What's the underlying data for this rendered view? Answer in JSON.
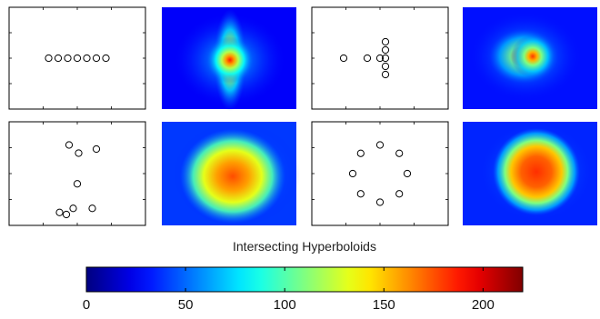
{
  "colorbar": {
    "title": "Intersecting Hyperboloids",
    "min": 0,
    "max": 220,
    "ticks": [
      0,
      50,
      100,
      150,
      200
    ],
    "tick_labels": [
      "0",
      "50",
      "100",
      "150",
      "200"
    ],
    "colormap": "jet"
  },
  "panels": [
    {
      "id": "row1-col1",
      "kind": "sensor-layout",
      "arrangement": "linear array",
      "sensors": [
        [
          -0.45,
          0.0
        ],
        [
          -0.3,
          0.0
        ],
        [
          -0.15,
          0.0
        ],
        [
          0.0,
          0.0
        ],
        [
          0.15,
          0.0
        ],
        [
          0.3,
          0.0
        ],
        [
          0.45,
          0.0
        ]
      ]
    },
    {
      "id": "row1-col2",
      "kind": "heatmap",
      "description_peak": "compact hot spot at centre with streaks along diagonals",
      "peak_level": 0.85
    },
    {
      "id": "row1-col3",
      "kind": "sensor-layout",
      "arrangement": "cross array",
      "sensors": [
        [
          -1.0,
          0.0
        ],
        [
          -0.35,
          0.0
        ],
        [
          0.0,
          0.0
        ],
        [
          0.15,
          0.0
        ],
        [
          0.15,
          0.3
        ],
        [
          0.15,
          -0.3
        ],
        [
          0.15,
          0.6
        ],
        [
          0.15,
          -0.6
        ]
      ]
    },
    {
      "id": "row1-col4",
      "kind": "heatmap",
      "peak_level": 0.82
    },
    {
      "id": "row2-col1",
      "kind": "sensor-layout",
      "arrangement": "random array",
      "sensors": [
        [
          -0.3,
          0.7
        ],
        [
          0.05,
          0.5
        ],
        [
          0.7,
          0.6
        ],
        [
          0.0,
          -0.25
        ],
        [
          0.55,
          -0.85
        ],
        [
          -0.15,
          -0.85
        ],
        [
          -0.65,
          -0.95
        ],
        [
          -0.4,
          -1.0
        ]
      ]
    },
    {
      "id": "row2-col2",
      "kind": "heatmap",
      "peak_level": 0.78
    },
    {
      "id": "row2-col3",
      "kind": "sensor-layout",
      "arrangement": "circular array",
      "sensors": [
        [
          0.0,
          0.75
        ],
        [
          0.53,
          0.53
        ],
        [
          0.75,
          0.0
        ],
        [
          0.53,
          -0.53
        ],
        [
          0.0,
          -0.75
        ],
        [
          -0.53,
          -0.53
        ],
        [
          -0.75,
          0.0
        ],
        [
          -0.53,
          0.53
        ]
      ]
    },
    {
      "id": "row2-col4",
      "kind": "heatmap",
      "peak_level": 0.82
    }
  ],
  "colors": {
    "jet_low": "#00007f",
    "jet_high": "#7f0000",
    "axes": "#000000"
  }
}
